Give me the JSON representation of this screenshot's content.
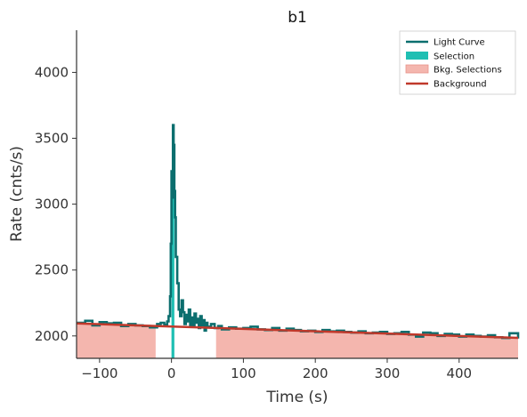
{
  "chart_data": {
    "type": "line",
    "title": "b1",
    "xlabel": "Time (s)",
    "ylabel": "Rate (cnts/s)",
    "xlim": [
      -132,
      482
    ],
    "ylim": [
      1830,
      4320
    ],
    "xticks": [
      -100,
      0,
      100,
      200,
      300,
      400
    ],
    "yticks": [
      2000,
      2500,
      3000,
      3500,
      4000
    ],
    "xtick_labels": [
      "−100",
      "0",
      "100",
      "200",
      "300",
      "400"
    ],
    "ytick_labels": [
      "2000",
      "2500",
      "3000",
      "3500",
      "4000"
    ],
    "grid": false,
    "legend_position": "top-right",
    "legend": [
      "Light Curve",
      "Selection",
      "Bkg. Selections",
      "Background"
    ],
    "colors": {
      "light_curve": "#0b6e6e",
      "selection": "#1fbfb3",
      "bkg_selection": "#f4b6ae",
      "background": "#c0392b",
      "axis": "#333333"
    },
    "bkg_selections": [
      [
        -132,
        -22
      ],
      [
        62,
        482
      ]
    ],
    "selection_range": [
      0,
      4
    ],
    "background_line": {
      "x": [
        -132,
        482
      ],
      "y": [
        2095,
        1985
      ]
    },
    "light_curve": {
      "x": [
        -132,
        -120,
        -110,
        -100,
        -90,
        -80,
        -70,
        -60,
        -50,
        -40,
        -30,
        -20,
        -15,
        -10,
        -6,
        -4,
        -2,
        -1,
        0,
        1,
        2,
        3,
        4,
        5,
        6,
        8,
        10,
        12,
        14,
        16,
        18,
        20,
        22,
        24,
        26,
        28,
        30,
        32,
        34,
        36,
        38,
        40,
        42,
        44,
        46,
        48,
        50,
        55,
        60,
        65,
        70,
        80,
        90,
        100,
        110,
        120,
        130,
        140,
        150,
        160,
        170,
        180,
        190,
        200,
        210,
        220,
        230,
        240,
        250,
        260,
        270,
        280,
        290,
        300,
        310,
        320,
        330,
        340,
        350,
        360,
        370,
        380,
        390,
        400,
        410,
        420,
        430,
        440,
        450,
        460,
        470,
        482
      ],
      "y": [
        2100,
        2115,
        2080,
        2105,
        2095,
        2100,
        2075,
        2090,
        2080,
        2075,
        2065,
        2090,
        2100,
        2085,
        2110,
        2150,
        2300,
        2700,
        3250,
        3050,
        3600,
        3450,
        3100,
        2900,
        2600,
        2400,
        2200,
        2150,
        2270,
        2180,
        2090,
        2160,
        2110,
        2200,
        2080,
        2140,
        2070,
        2170,
        2100,
        2130,
        2060,
        2150,
        2080,
        2120,
        2040,
        2100,
        2070,
        2090,
        2060,
        2075,
        2050,
        2065,
        2055,
        2060,
        2070,
        2050,
        2045,
        2060,
        2040,
        2055,
        2045,
        2035,
        2040,
        2030,
        2045,
        2035,
        2040,
        2030,
        2025,
        2035,
        2020,
        2025,
        2030,
        2015,
        2020,
        2030,
        2010,
        1995,
        2025,
        2020,
        2000,
        2015,
        2010,
        1995,
        2010,
        2000,
        1995,
        2005,
        1990,
        1985,
        2020,
        1980
      ]
    }
  }
}
